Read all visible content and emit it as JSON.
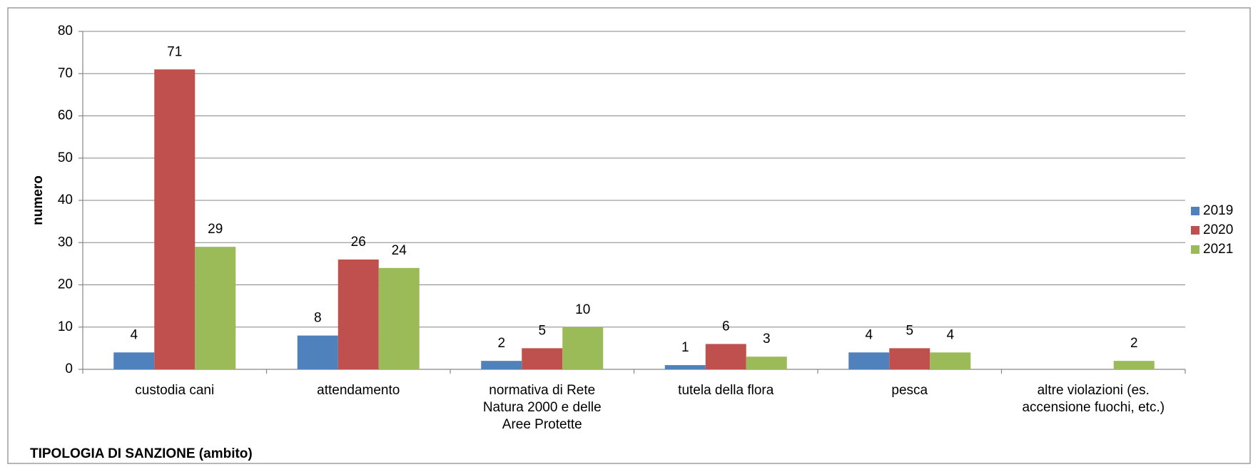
{
  "chart_data": {
    "type": "bar",
    "x_label": "TIPOLOGIA DI SANZIONE (ambito)",
    "y_label": "numero",
    "categories": [
      "custodia cani",
      "attendamento",
      "normativa di Rete Natura 2000 e delle Aree Protette",
      "tutela della flora",
      "pesca",
      "altre violazioni (es. accensione fuochi, etc.)"
    ],
    "series": [
      {
        "name": "2019",
        "color": "#4f81bd",
        "values": [
          4,
          8,
          2,
          1,
          4,
          null
        ]
      },
      {
        "name": "2020",
        "color": "#c0504d",
        "values": [
          71,
          26,
          5,
          6,
          5,
          null
        ]
      },
      {
        "name": "2021",
        "color": "#9bbb59",
        "values": [
          29,
          24,
          10,
          3,
          4,
          2
        ]
      }
    ],
    "ylim": [
      0,
      80
    ],
    "yticks": [
      0,
      10,
      20,
      30,
      40,
      50,
      60,
      70,
      80
    ],
    "grid": true,
    "legend": "right"
  }
}
